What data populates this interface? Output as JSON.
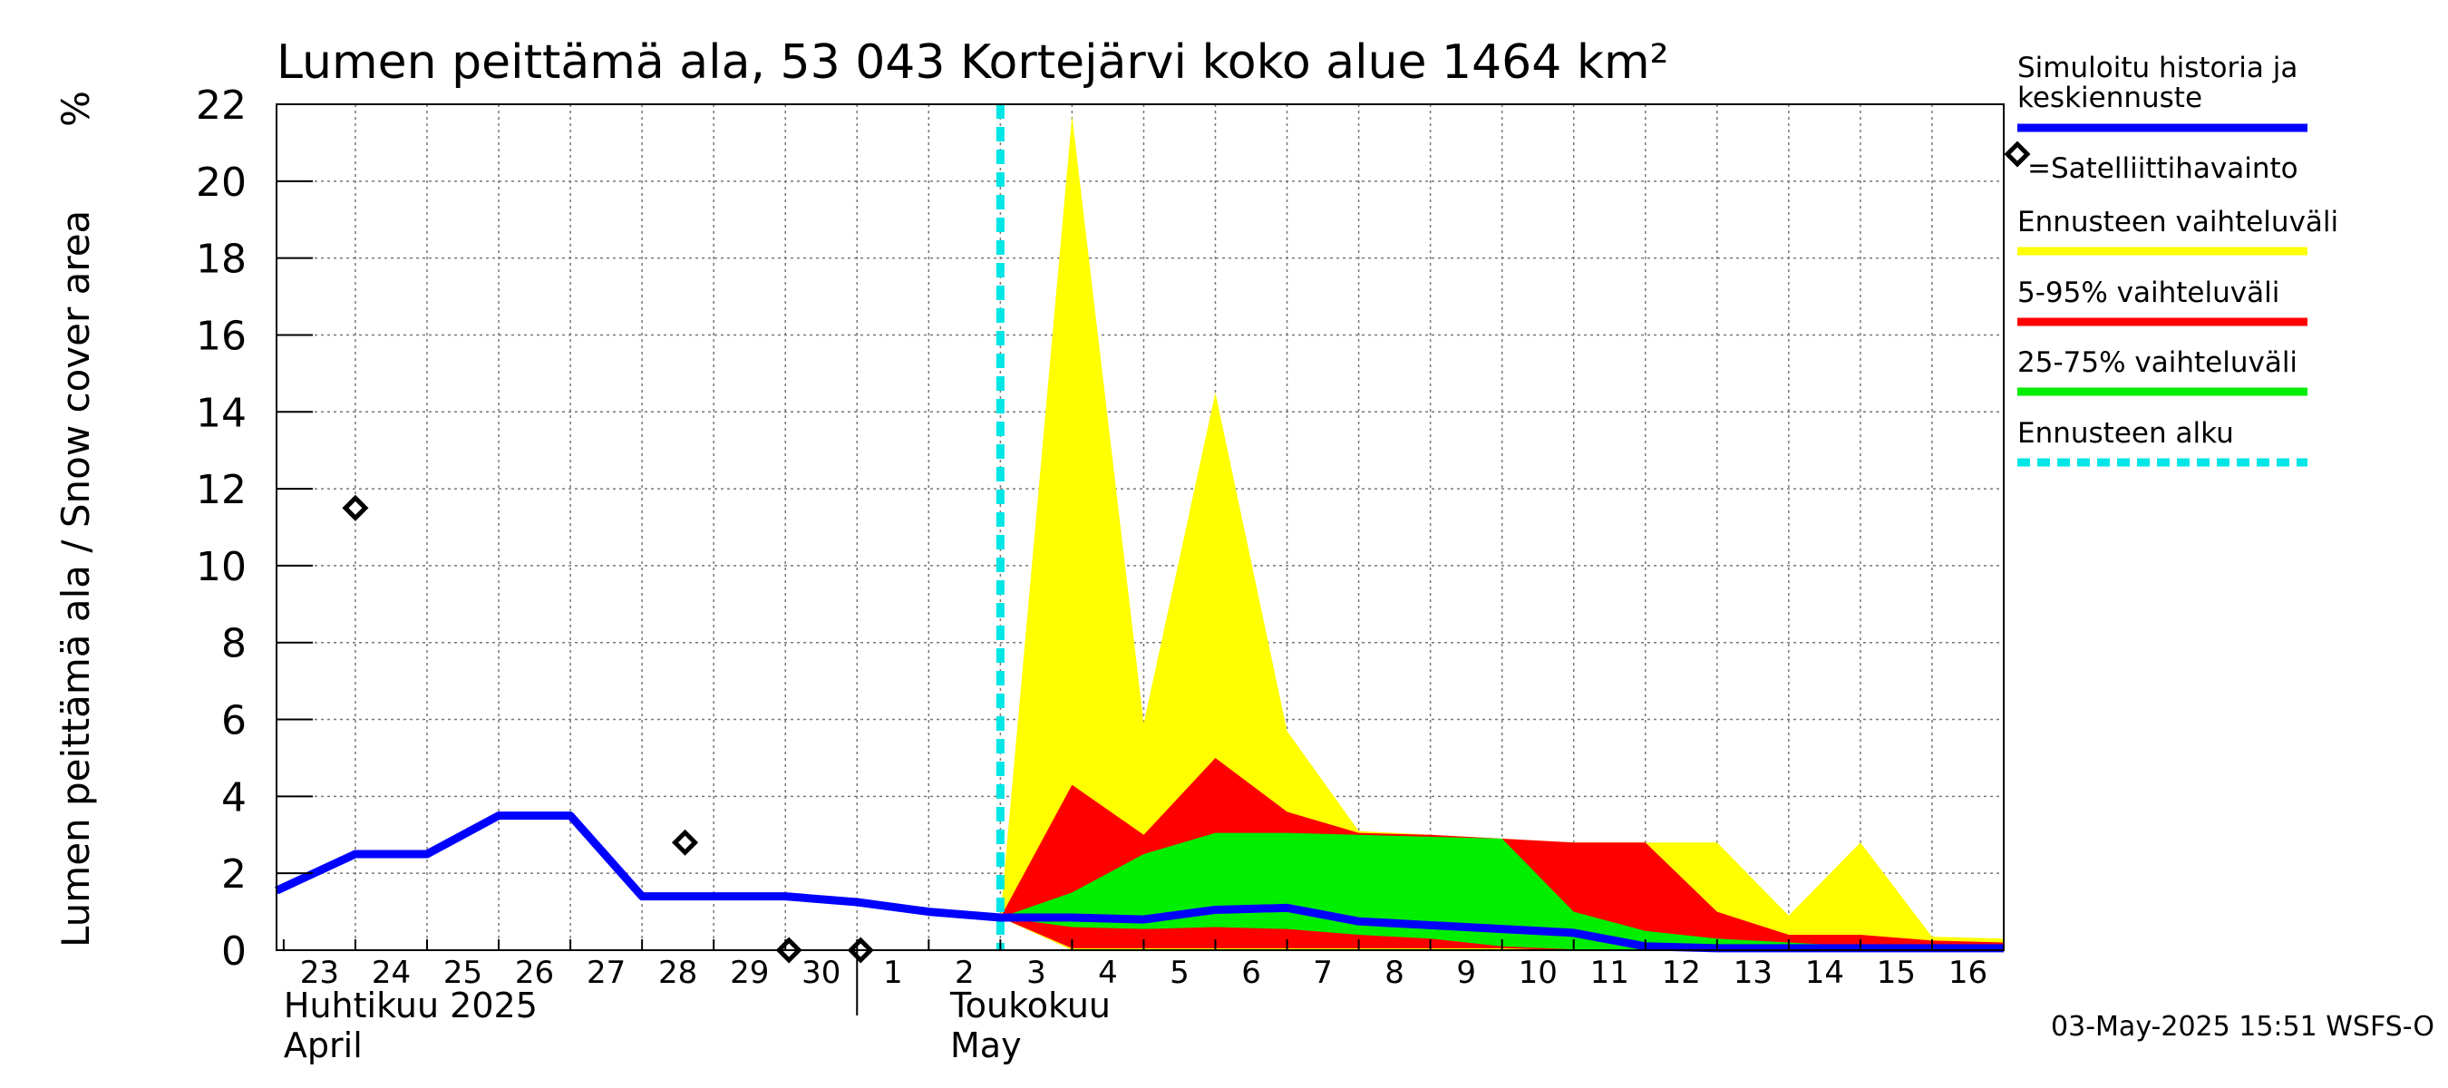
{
  "chart_data": {
    "type": "area",
    "title": "Lumen peittämä ala, 53 043 Kortejärvi koko alue 1464 km²",
    "ylabel": "Lumen peittämä ala / Snow cover area",
    "yunit": "%",
    "ylim": [
      0,
      22
    ],
    "yticks": [
      0,
      2,
      4,
      6,
      8,
      10,
      12,
      14,
      16,
      18,
      20,
      22
    ],
    "xlim": [
      -0.1,
      24
    ],
    "x_days": [
      23,
      24,
      25,
      26,
      27,
      28,
      29,
      30,
      1,
      2,
      3,
      4,
      5,
      6,
      7,
      8,
      9,
      10,
      11,
      12,
      13,
      14,
      15,
      16
    ],
    "month_labels": [
      {
        "x": 0,
        "fi": "Huhtikuu  2025",
        "en": "April"
      },
      {
        "x": 9.3,
        "fi": "Toukokuu",
        "en": "May"
      }
    ],
    "month_boundary_x": 8,
    "forecast_start_x": 10,
    "grid": true,
    "series": [
      {
        "name": "Simuloitu historia ja keskiennuste",
        "type": "line",
        "color": "#0000ff",
        "x": [
          -0.1,
          1,
          2,
          3,
          4,
          5,
          6,
          7,
          8,
          9,
          10,
          11,
          12,
          13,
          14,
          15,
          16,
          17,
          18,
          19,
          20,
          21,
          22,
          23,
          24
        ],
        "y": [
          1.55,
          2.5,
          2.5,
          3.5,
          3.5,
          1.4,
          1.4,
          1.4,
          1.25,
          1.0,
          0.85,
          0.85,
          0.8,
          1.05,
          1.1,
          0.75,
          0.65,
          0.55,
          0.45,
          0.1,
          0.05,
          0.05,
          0.05,
          0.05,
          0.05
        ]
      },
      {
        "name": "Ennusteen vaihteluväli",
        "type": "band",
        "color": "#ffff00",
        "x": [
          10,
          11,
          12,
          13,
          14,
          15,
          16,
          17,
          18,
          19,
          20,
          21,
          22,
          23,
          24
        ],
        "lower": [
          0.85,
          0,
          0,
          0,
          0,
          0,
          0,
          0,
          0,
          0,
          0,
          0,
          0,
          0,
          0
        ],
        "upper": [
          0.85,
          21.7,
          5.9,
          14.5,
          5.7,
          3.1,
          3.0,
          2.9,
          2.8,
          2.8,
          2.8,
          0.9,
          2.8,
          0.35,
          0.3
        ]
      },
      {
        "name": "5-95% vaihteluväli",
        "type": "band",
        "color": "#ff0000",
        "x": [
          10,
          11,
          12,
          13,
          14,
          15,
          16,
          17,
          18,
          19,
          20,
          21,
          22,
          23,
          24
        ],
        "lower": [
          0.85,
          0.05,
          0.05,
          0.05,
          0.05,
          0.05,
          0.05,
          0.05,
          0,
          0,
          0,
          0,
          0,
          0,
          0
        ],
        "upper": [
          0.85,
          4.3,
          3.0,
          5.0,
          3.6,
          3.05,
          3.0,
          2.9,
          2.8,
          2.8,
          1.0,
          0.4,
          0.4,
          0.25,
          0.2
        ]
      },
      {
        "name": "25-75% vaihteluväli",
        "type": "band",
        "color": "#00ee00",
        "x": [
          10,
          11,
          12,
          13,
          14,
          15,
          16,
          17,
          18,
          19,
          20,
          21,
          22,
          23,
          24
        ],
        "lower": [
          0.85,
          0.6,
          0.55,
          0.6,
          0.55,
          0.4,
          0.3,
          0.1,
          0.02,
          0,
          0,
          0,
          0,
          0,
          0
        ],
        "upper": [
          0.85,
          1.5,
          2.5,
          3.05,
          3.05,
          3.0,
          2.95,
          2.9,
          1.0,
          0.5,
          0.3,
          0.2,
          0.1,
          0.05,
          0.05
        ]
      }
    ],
    "satellite_observations": {
      "name": "=Satelliittihavainto",
      "x": [
        1,
        5.6,
        7.05,
        8.05
      ],
      "y": [
        11.5,
        2.8,
        0,
        0
      ]
    },
    "legend": [
      {
        "label": "Simuloitu historia ja",
        "label2": "keskiennuste",
        "color": "#0000ff",
        "style": "line"
      },
      {
        "label": "=Satelliittihavainto",
        "color": "#000000",
        "style": "diamond"
      },
      {
        "label": "Ennusteen vaihteluväli",
        "color": "#ffff00",
        "style": "line"
      },
      {
        "label": "5-95% vaihteluväli",
        "color": "#ff0000",
        "style": "line"
      },
      {
        "label": "25-75% vaihteluväli",
        "color": "#00ee00",
        "style": "line"
      },
      {
        "label": "Ennusteen alku",
        "color": "#00e5e5",
        "style": "dashed"
      }
    ],
    "legend_position": "right",
    "timestamp": "03-May-2025 15:51 WSFS-O"
  }
}
